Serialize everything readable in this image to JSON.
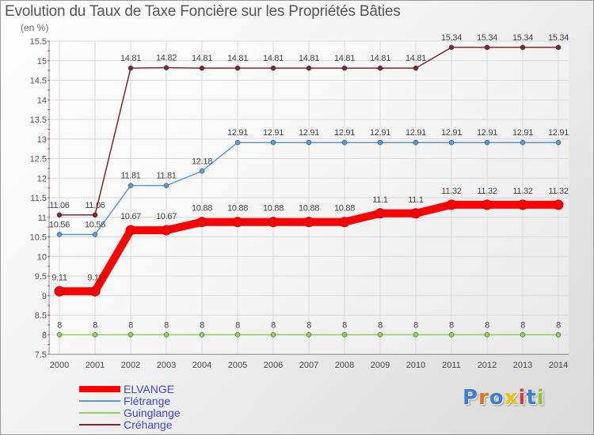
{
  "title": "Evolution du Taux de Taxe Foncière sur les Propriétés Bâties",
  "unit_label": "(en %)",
  "logo": {
    "text": "Proxiti",
    "letter_colors": [
      "#3f7fd0",
      "#e8711b",
      "#3f7fd0",
      "#e8c400",
      "#d03f3f",
      "#3f7fd0",
      "#8fc03f"
    ]
  },
  "chart_data": {
    "type": "line",
    "x": [
      "2000",
      "2001",
      "2002",
      "2003",
      "2004",
      "2005",
      "2006",
      "2007",
      "2008",
      "2009",
      "2010",
      "2011",
      "2012",
      "2013",
      "2014"
    ],
    "y_ticks": [
      "7.5",
      "8",
      "8.5",
      "9",
      "9.5",
      "10",
      "10.5",
      "11",
      "11.5",
      "12",
      "12.5",
      "13",
      "13.5",
      "14",
      "14.5",
      "15",
      "15.5"
    ],
    "ylim": [
      7.5,
      15.5
    ],
    "grid": true,
    "legend_position": "bottom-left",
    "series": [
      {
        "name": "ELVANGE",
        "color": "#ff0000",
        "width": 10,
        "values": [
          9.11,
          9.11,
          10.67,
          10.67,
          10.88,
          10.88,
          10.88,
          10.88,
          10.88,
          11.1,
          11.1,
          11.32,
          11.32,
          11.32,
          11.32
        ],
        "labels": [
          "9.11",
          "9.11",
          "10.67",
          "10.67",
          "10.88",
          "10.88",
          "10.88",
          "10.88",
          "10.88",
          "11.1",
          "11.1",
          "11.32",
          "11.32",
          "11.32",
          "11.32"
        ]
      },
      {
        "name": "Flétrange",
        "color": "#5a9ad0",
        "width": 1.5,
        "values": [
          10.56,
          10.56,
          11.81,
          11.81,
          12.18,
          12.91,
          12.91,
          12.91,
          12.91,
          12.91,
          12.91,
          12.91,
          12.91,
          12.91,
          12.91
        ],
        "labels": [
          "10.56",
          "10.56",
          "11.81",
          "11.81",
          "12.18",
          "12.91",
          "12.91",
          "12.91",
          "12.91",
          "12.91",
          "12.91",
          "12.91",
          "12.91",
          "12.91",
          "12.91"
        ]
      },
      {
        "name": "Guinglange",
        "color": "#8fd05a",
        "width": 1.5,
        "values": [
          8,
          8,
          8,
          8,
          8,
          8,
          8,
          8,
          8,
          8,
          8,
          8,
          8,
          8,
          8
        ],
        "labels": [
          "8",
          "8",
          "8",
          "8",
          "8",
          "8",
          "8",
          "8",
          "8",
          "8",
          "8",
          "8",
          "8",
          "8",
          "8"
        ]
      },
      {
        "name": "Créhange",
        "color": "#7a2a2a",
        "width": 1.5,
        "values": [
          11.06,
          11.06,
          14.81,
          14.82,
          14.81,
          14.81,
          14.81,
          14.81,
          14.81,
          14.81,
          14.81,
          15.34,
          15.34,
          15.34,
          15.34
        ],
        "labels": [
          "11.06",
          "11.06",
          "14.81",
          "14.82",
          "14.81",
          "14.81",
          "14.81",
          "14.81",
          "14.81",
          "14.81",
          "14.81",
          "15.34",
          "15.34",
          "15.34",
          "15.34"
        ]
      }
    ]
  }
}
